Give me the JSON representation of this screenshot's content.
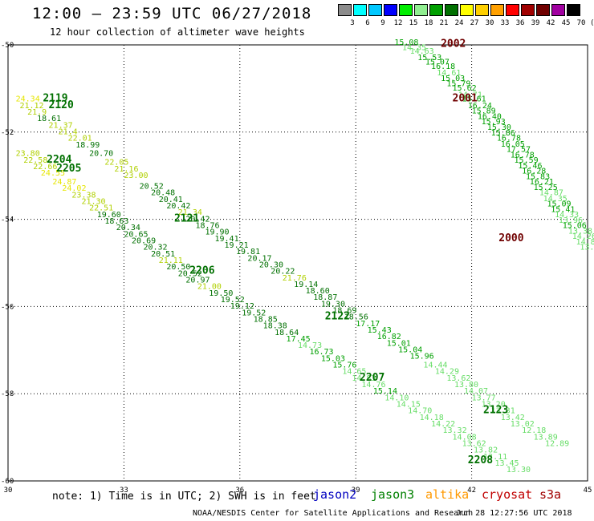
{
  "header": {
    "title": "12:00 – 23:59 UTC 06/27/2018",
    "subtitle": "12 hour collection of altimeter wave heights"
  },
  "scale": {
    "labels": [
      "3",
      "6",
      "9",
      "12",
      "15",
      "18",
      "21",
      "24",
      "27",
      "30",
      "33",
      "36",
      "39",
      "42",
      "45",
      "70"
    ],
    "unit": "(ft)",
    "colors": [
      "#8c8c8c",
      "#00ffff",
      "#00c8ff",
      "#0000ff",
      "#00ee00",
      "#90ee90",
      "#00a000",
      "#007000",
      "#ffff00",
      "#ffd000",
      "#ffa000",
      "#ff0000",
      "#a00000",
      "#700000",
      "#a000a0",
      "#000000"
    ]
  },
  "chart_data": {
    "type": "scatter",
    "xlim": [
      30,
      45
    ],
    "ylim": [
      -60,
      -50
    ],
    "x_ticks": [
      "30",
      "33",
      "36",
      "39",
      "42",
      "45"
    ],
    "y_ticks": [
      "-50",
      "-52",
      "-54",
      "-56",
      "-58",
      "-60"
    ],
    "grid": true,
    "labels": [
      {
        "text": "2002",
        "lon": 41.2,
        "lat": -50.05,
        "color": "#700000"
      },
      {
        "text": "2001",
        "lon": 41.5,
        "lat": -51.3,
        "color": "#700000"
      },
      {
        "text": "2000",
        "lon": 42.7,
        "lat": -54.5,
        "color": "#700000"
      },
      {
        "text": "2119",
        "lon": 30.9,
        "lat": -51.3,
        "color": "#007000"
      },
      {
        "text": "2120",
        "lon": 31.05,
        "lat": -51.45,
        "color": "#007000"
      },
      {
        "text": "2204",
        "lon": 31.0,
        "lat": -52.7,
        "color": "#007000"
      },
      {
        "text": "2205",
        "lon": 31.25,
        "lat": -52.9,
        "color": "#007000"
      },
      {
        "text": "2121",
        "lon": 34.3,
        "lat": -54.05,
        "color": "#007000"
      },
      {
        "text": "2206",
        "lon": 34.7,
        "lat": -55.25,
        "color": "#007000"
      },
      {
        "text": "2122",
        "lon": 38.2,
        "lat": -56.3,
        "color": "#007000"
      },
      {
        "text": "2207",
        "lon": 39.1,
        "lat": -57.7,
        "color": "#007000"
      },
      {
        "text": "2123",
        "lon": 42.3,
        "lat": -58.45,
        "color": "#007000"
      },
      {
        "text": "2208",
        "lon": 41.9,
        "lat": -59.6,
        "color": "#007000"
      }
    ],
    "points": [
      {
        "v": "15.08",
        "lon": 40.0,
        "lat": -50.0
      },
      {
        "v": "14.35",
        "lon": 40.2,
        "lat": -50.12
      },
      {
        "v": "14.63",
        "lon": 40.4,
        "lat": -50.2
      },
      {
        "v": "15.53",
        "lon": 40.6,
        "lat": -50.35
      },
      {
        "v": "15.07",
        "lon": 40.8,
        "lat": -50.45
      },
      {
        "v": "16.18",
        "lon": 40.95,
        "lat": -50.55
      },
      {
        "v": "14.61",
        "lon": 41.1,
        "lat": -50.7
      },
      {
        "v": "15.03",
        "lon": 41.2,
        "lat": -50.83
      },
      {
        "v": "15.79",
        "lon": 41.35,
        "lat": -50.95
      },
      {
        "v": "15.62",
        "lon": 41.5,
        "lat": -51.05
      },
      {
        "v": "14.71",
        "lon": 41.65,
        "lat": -51.2
      },
      {
        "v": "15.61",
        "lon": 41.75,
        "lat": -51.3
      },
      {
        "v": "16.24",
        "lon": 41.9,
        "lat": -51.45
      },
      {
        "v": "15.89",
        "lon": 42.0,
        "lat": -51.57
      },
      {
        "v": "16.40",
        "lon": 42.15,
        "lat": -51.7
      },
      {
        "v": "15.93",
        "lon": 42.25,
        "lat": -51.82
      },
      {
        "v": "15.30",
        "lon": 42.4,
        "lat": -51.95
      },
      {
        "v": "15.86",
        "lon": 42.5,
        "lat": -52.08
      },
      {
        "v": "16.78",
        "lon": 42.65,
        "lat": -52.2
      },
      {
        "v": "16.05",
        "lon": 42.75,
        "lat": -52.33
      },
      {
        "v": "17.57",
        "lon": 42.9,
        "lat": -52.45
      },
      {
        "v": "16.78",
        "lon": 43.0,
        "lat": -52.58
      },
      {
        "v": "15.59",
        "lon": 43.1,
        "lat": -52.7
      },
      {
        "v": "15.46",
        "lon": 43.2,
        "lat": -52.83
      },
      {
        "v": "16.28",
        "lon": 43.3,
        "lat": -52.95
      },
      {
        "v": "15.83",
        "lon": 43.4,
        "lat": -53.08
      },
      {
        "v": "16.21",
        "lon": 43.5,
        "lat": -53.2
      },
      {
        "v": "15.25",
        "lon": 43.6,
        "lat": -53.33
      },
      {
        "v": "14.87",
        "lon": 43.75,
        "lat": -53.45
      },
      {
        "v": "14.35",
        "lon": 43.85,
        "lat": -53.58
      },
      {
        "v": "15.09",
        "lon": 43.95,
        "lat": -53.7
      },
      {
        "v": "15.41",
        "lon": 44.05,
        "lat": -53.83
      },
      {
        "v": "14.33",
        "lon": 44.15,
        "lat": -53.95
      },
      {
        "v": "13.96",
        "lon": 44.25,
        "lat": -54.08
      },
      {
        "v": "15.06",
        "lon": 44.35,
        "lat": -54.2
      },
      {
        "v": "13.38",
        "lon": 44.5,
        "lat": -54.33
      },
      {
        "v": "14.26",
        "lon": 44.6,
        "lat": -54.45
      },
      {
        "v": "14.84",
        "lon": 44.7,
        "lat": -54.58
      },
      {
        "v": "13.52",
        "lon": 44.8,
        "lat": -54.7
      },
      {
        "v": "24.34",
        "lon": 30.2,
        "lat": -51.3
      },
      {
        "v": "21.12",
        "lon": 30.3,
        "lat": -51.45
      },
      {
        "v": "21.9",
        "lon": 30.5,
        "lat": -51.6
      },
      {
        "v": "18.61",
        "lon": 30.75,
        "lat": -51.75
      },
      {
        "v": "21.37",
        "lon": 31.05,
        "lat": -51.9
      },
      {
        "v": "21.4",
        "lon": 31.3,
        "lat": -52.05
      },
      {
        "v": "22.01",
        "lon": 31.55,
        "lat": -52.2
      },
      {
        "v": "18.99",
        "lon": 31.75,
        "lat": -52.35
      },
      {
        "v": "20.70",
        "lon": 32.1,
        "lat": -52.55
      },
      {
        "v": "22.05",
        "lon": 32.5,
        "lat": -52.75
      },
      {
        "v": "21.16",
        "lon": 32.75,
        "lat": -52.9
      },
      {
        "v": "23.00",
        "lon": 33.0,
        "lat": -53.05
      },
      {
        "v": "20.52",
        "lon": 33.4,
        "lat": -53.3
      },
      {
        "v": "20.48",
        "lon": 33.7,
        "lat": -53.45
      },
      {
        "v": "20.41",
        "lon": 33.9,
        "lat": -53.6
      },
      {
        "v": "20.42",
        "lon": 34.1,
        "lat": -53.75
      },
      {
        "v": "21.34",
        "lon": 34.4,
        "lat": -53.9
      },
      {
        "v": "20.42",
        "lon": 34.6,
        "lat": -54.05
      },
      {
        "v": "18.76",
        "lon": 34.85,
        "lat": -54.2
      },
      {
        "v": "19.90",
        "lon": 35.1,
        "lat": -54.35
      },
      {
        "v": "19.41",
        "lon": 35.35,
        "lat": -54.5
      },
      {
        "v": "19.21",
        "lon": 35.6,
        "lat": -54.65
      },
      {
        "v": "19.81",
        "lon": 35.9,
        "lat": -54.8
      },
      {
        "v": "20.17",
        "lon": 36.2,
        "lat": -54.95
      },
      {
        "v": "20.30",
        "lon": 36.5,
        "lat": -55.1
      },
      {
        "v": "20.22",
        "lon": 36.8,
        "lat": -55.25
      },
      {
        "v": "21.76",
        "lon": 37.1,
        "lat": -55.4
      },
      {
        "v": "19.14",
        "lon": 37.4,
        "lat": -55.55
      },
      {
        "v": "18.60",
        "lon": 37.7,
        "lat": -55.7
      },
      {
        "v": "18.87",
        "lon": 37.9,
        "lat": -55.85
      },
      {
        "v": "19.30",
        "lon": 38.1,
        "lat": -56.0
      },
      {
        "v": "18.69",
        "lon": 38.4,
        "lat": -56.15
      },
      {
        "v": "18.56",
        "lon": 38.7,
        "lat": -56.3
      },
      {
        "v": "17.17",
        "lon": 39.0,
        "lat": -56.45
      },
      {
        "v": "15.43",
        "lon": 39.3,
        "lat": -56.6
      },
      {
        "v": "16.82",
        "lon": 39.55,
        "lat": -56.75
      },
      {
        "v": "15.01",
        "lon": 39.8,
        "lat": -56.9
      },
      {
        "v": "15.04",
        "lon": 40.1,
        "lat": -57.05
      },
      {
        "v": "15.96",
        "lon": 40.4,
        "lat": -57.2
      },
      {
        "v": "14.44",
        "lon": 40.75,
        "lat": -57.4
      },
      {
        "v": "14.29",
        "lon": 41.05,
        "lat": -57.55
      },
      {
        "v": "13.62",
        "lon": 41.35,
        "lat": -57.7
      },
      {
        "v": "13.80",
        "lon": 41.55,
        "lat": -57.85
      },
      {
        "v": "14.07",
        "lon": 41.8,
        "lat": -58.0
      },
      {
        "v": "13.77",
        "lon": 42.0,
        "lat": -58.15
      },
      {
        "v": "13.20",
        "lon": 42.25,
        "lat": -58.3
      },
      {
        "v": "13.31",
        "lon": 42.5,
        "lat": -58.45
      },
      {
        "v": "13.42",
        "lon": 42.75,
        "lat": -58.6
      },
      {
        "v": "13.02",
        "lon": 43.0,
        "lat": -58.75
      },
      {
        "v": "12.18",
        "lon": 43.3,
        "lat": -58.9
      },
      {
        "v": "13.89",
        "lon": 43.6,
        "lat": -59.05
      },
      {
        "v": "12.89",
        "lon": 43.9,
        "lat": -59.2
      },
      {
        "v": "23.80",
        "lon": 30.2,
        "lat": -52.55
      },
      {
        "v": "22.58",
        "lon": 30.4,
        "lat": -52.7
      },
      {
        "v": "22.66",
        "lon": 30.65,
        "lat": -52.85
      },
      {
        "v": "24.55",
        "lon": 30.85,
        "lat": -53.0
      },
      {
        "v": "24.87",
        "lon": 31.15,
        "lat": -53.2
      },
      {
        "v": "24.02",
        "lon": 31.4,
        "lat": -53.35
      },
      {
        "v": "23.38",
        "lon": 31.65,
        "lat": -53.5
      },
      {
        "v": "21.30",
        "lon": 31.9,
        "lat": -53.65
      },
      {
        "v": "22.51",
        "lon": 32.1,
        "lat": -53.8
      },
      {
        "v": "19.60",
        "lon": 32.3,
        "lat": -53.95
      },
      {
        "v": "18.63",
        "lon": 32.5,
        "lat": -54.1
      },
      {
        "v": "20.34",
        "lon": 32.8,
        "lat": -54.25
      },
      {
        "v": "20.65",
        "lon": 33.0,
        "lat": -54.4
      },
      {
        "v": "20.69",
        "lon": 33.2,
        "lat": -54.55
      },
      {
        "v": "20.32",
        "lon": 33.5,
        "lat": -54.7
      },
      {
        "v": "20.51",
        "lon": 33.7,
        "lat": -54.85
      },
      {
        "v": "21.11",
        "lon": 33.9,
        "lat": -55.0
      },
      {
        "v": "20.50",
        "lon": 34.1,
        "lat": -55.15
      },
      {
        "v": "20.52",
        "lon": 34.4,
        "lat": -55.3
      },
      {
        "v": "20.97",
        "lon": 34.6,
        "lat": -55.45
      },
      {
        "v": "21.00",
        "lon": 34.9,
        "lat": -55.6
      },
      {
        "v": "19.50",
        "lon": 35.2,
        "lat": -55.75
      },
      {
        "v": "19.52",
        "lon": 35.5,
        "lat": -55.9
      },
      {
        "v": "19.12",
        "lon": 35.75,
        "lat": -56.05
      },
      {
        "v": "19.52",
        "lon": 36.05,
        "lat": -56.2
      },
      {
        "v": "18.85",
        "lon": 36.35,
        "lat": -56.35
      },
      {
        "v": "18.38",
        "lon": 36.6,
        "lat": -56.5
      },
      {
        "v": "18.64",
        "lon": 36.9,
        "lat": -56.65
      },
      {
        "v": "17.45",
        "lon": 37.2,
        "lat": -56.8
      },
      {
        "v": "14.73",
        "lon": 37.5,
        "lat": -56.95
      },
      {
        "v": "16.73",
        "lon": 37.8,
        "lat": -57.1
      },
      {
        "v": "15.03",
        "lon": 38.1,
        "lat": -57.25
      },
      {
        "v": "15.76",
        "lon": 38.4,
        "lat": -57.4
      },
      {
        "v": "14.65",
        "lon": 38.65,
        "lat": -57.55
      },
      {
        "v": "14.83",
        "lon": 38.9,
        "lat": -57.7
      },
      {
        "v": "14.76",
        "lon": 39.15,
        "lat": -57.85
      },
      {
        "v": "15.14",
        "lon": 39.45,
        "lat": -58.0
      },
      {
        "v": "14.10",
        "lon": 39.75,
        "lat": -58.15
      },
      {
        "v": "14.15",
        "lon": 40.05,
        "lat": -58.3
      },
      {
        "v": "14.70",
        "lon": 40.35,
        "lat": -58.45
      },
      {
        "v": "14.18",
        "lon": 40.65,
        "lat": -58.6
      },
      {
        "v": "14.22",
        "lon": 40.95,
        "lat": -58.75
      },
      {
        "v": "13.32",
        "lon": 41.25,
        "lat": -58.9
      },
      {
        "v": "14.08",
        "lon": 41.5,
        "lat": -59.05
      },
      {
        "v": "13.62",
        "lon": 41.75,
        "lat": -59.2
      },
      {
        "v": "13.82",
        "lon": 42.05,
        "lat": -59.35
      },
      {
        "v": "13.11",
        "lon": 42.3,
        "lat": -59.5
      },
      {
        "v": "13.45",
        "lon": 42.6,
        "lat": -59.65
      },
      {
        "v": "13.30",
        "lon": 42.9,
        "lat": -59.8
      }
    ]
  },
  "note": "note: 1) Time is in UTC; 2) SWH is in feet",
  "satellites": [
    {
      "name": "jason2",
      "color": "#0000c0"
    },
    {
      "name": "jason3",
      "color": "#008000"
    },
    {
      "name": "altika",
      "color": "#ff9900"
    },
    {
      "name": "cryosat",
      "color": "#c00000"
    },
    {
      "name": "s3a",
      "color": "#a00000"
    }
  ],
  "footer": {
    "credit": "NOAA/NESDIS Center for Satellite Applications and Research",
    "timestamp": "Jun 28 12:27:56 UTC 2018"
  }
}
